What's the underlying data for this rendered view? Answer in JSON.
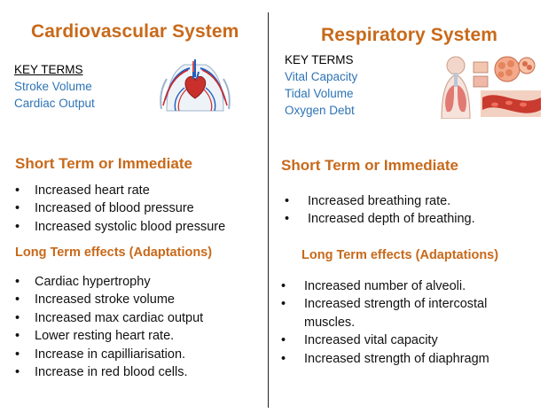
{
  "cardio": {
    "title": "Cardiovascular System",
    "key_terms_heading": "KEY TERMS",
    "key_terms": [
      "Stroke Volume",
      "Cardiac Output"
    ],
    "short_term_heading": "Short Term or Immediate",
    "short_term": [
      "Increased  heart rate",
      "Increased  of blood pressure",
      "Increased  systolic blood pressure"
    ],
    "long_term_heading": "Long Term effects (Adaptations)",
    "long_term": [
      "Cardiac hypertrophy",
      "Increased  stroke volume",
      "Increased  max cardiac output",
      "Lower resting heart rate.",
      "Increase  in capilliarisation.",
      "Increase  in red blood cells."
    ]
  },
  "resp": {
    "title": "Respiratory  System",
    "key_terms_heading": "KEY TERMS",
    "key_terms": [
      "Vital Capacity",
      "Tidal Volume",
      "Oxygen Debt"
    ],
    "short_term_heading": "Short Term or Immediate",
    "short_term": [
      "Increased  breathing rate.",
      "Increased  depth of breathing."
    ],
    "long_term_heading": "Long Term effects (Adaptations)",
    "long_term": [
      "Increased  number of alveoli.",
      "Increased  strength of intercostal muscles.",
      "Increased  vital capacity",
      "Increased  strength of diaphragm"
    ]
  },
  "colors": {
    "heading": "#c8691a",
    "key_term": "#2e74b5"
  },
  "icons": [
    "heart-circulation-illustration",
    "respiratory-system-illustration"
  ]
}
